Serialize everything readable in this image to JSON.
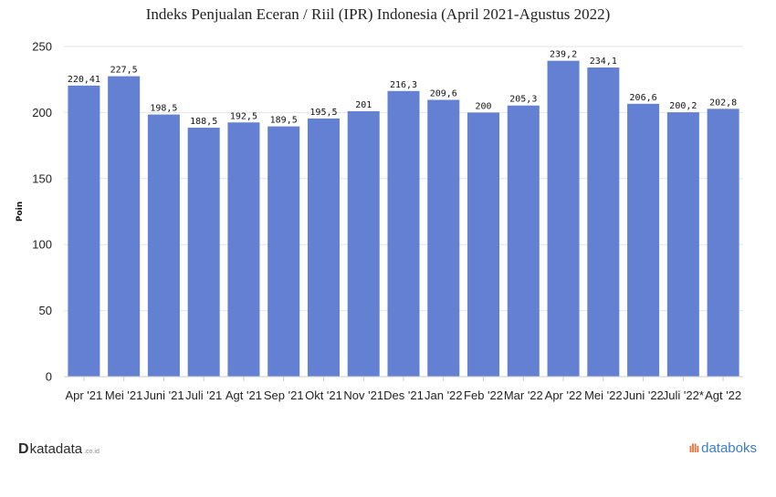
{
  "chart_data": {
    "type": "bar",
    "title": "Indeks Penjualan Eceran / Riil (IPR) Indonesia (April 2021-Agustus 2022)",
    "xlabel": "",
    "ylabel": "Poin",
    "ylim": [
      0,
      250
    ],
    "yticks": [
      "0",
      "50",
      "100",
      "150",
      "200",
      "250"
    ],
    "grid": true,
    "bar_color": "#6480d3",
    "categories": [
      "Apr '21",
      "Mei '21",
      "Juni '21",
      "Juli '21",
      "Agt '21",
      "Sep '21",
      "Okt '21",
      "Nov '21",
      "Des '21",
      "Jan '22",
      "Feb '22",
      "Mar '22",
      "Apr '22",
      "Mei '22",
      "Juni '22",
      "Juli '22*",
      "Agt '22"
    ],
    "values": [
      220.41,
      227.5,
      198.5,
      188.5,
      192.5,
      189.5,
      195.5,
      201,
      216.3,
      209.6,
      200,
      205.3,
      239.2,
      234.1,
      206.6,
      200.2,
      202.8
    ],
    "data_labels": [
      "220,41",
      "227,5",
      "198,5",
      "188,5",
      "192,5",
      "189,5",
      "195,5",
      "201",
      "216,3",
      "209,6",
      "200",
      "205,3",
      "239,2",
      "234,1",
      "206,6",
      "200,2",
      "202,8"
    ]
  },
  "footer": {
    "left_mark": "D",
    "left_brand": "katadata",
    "left_suffix": ".co.id",
    "right_mark": "ıllı",
    "right_brand": "databoks"
  }
}
